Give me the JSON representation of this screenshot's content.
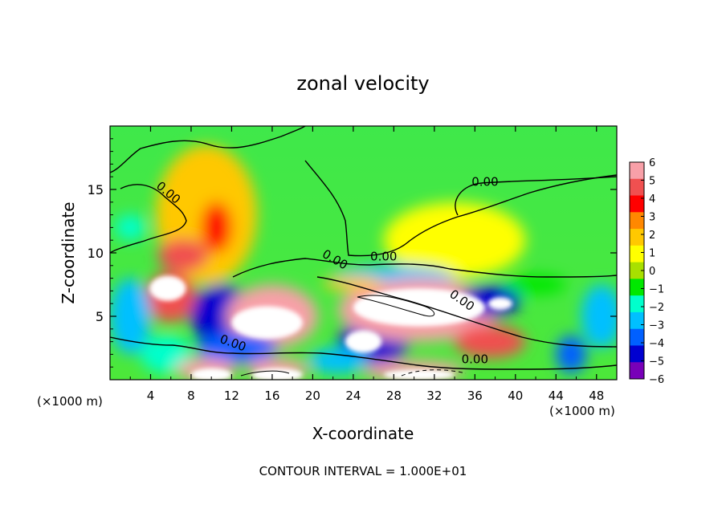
{
  "chart_data": {
    "type": "heatmap",
    "title": "zonal velocity",
    "xlabel": "X-coordinate",
    "ylabel": "Z-coordinate",
    "x_unit_label": "(×1000 m)",
    "x_ticks": [
      4,
      8,
      12,
      16,
      20,
      24,
      28,
      32,
      36,
      40,
      44,
      48
    ],
    "y_ticks": [
      5,
      10,
      15
    ],
    "xlim": [
      0,
      50
    ],
    "ylim": [
      0,
      20
    ],
    "footer": "CONTOUR INTERVAL = 1.000E+01",
    "colorbar": {
      "ticks": [
        6,
        5,
        4,
        3,
        2,
        1,
        0,
        -1,
        -2,
        -3,
        -4,
        -5,
        -6
      ],
      "tick_labels": [
        "6",
        "5",
        "4",
        "3",
        "2",
        "1",
        "0",
        "−1",
        "−2",
        "−3",
        "−4",
        "−5",
        "−6"
      ],
      "colors": [
        "#f8a0a8",
        "#f05050",
        "#ff0000",
        "#ff8800",
        "#ffc800",
        "#ffff00",
        "#a8e000",
        "#00e800",
        "#00ffcc",
        "#00c0ff",
        "#0060ff",
        "#0000d0",
        "#7800b8"
      ]
    },
    "field": {
      "background": "#3fe84a",
      "blobs": [
        {
          "x": 9.5,
          "y": 13.0,
          "rx": 5.0,
          "ry": 5.5,
          "value": 1.5
        },
        {
          "x": 10.5,
          "y": 12.0,
          "rx": 1.5,
          "ry": 2.0,
          "value": 4.0
        },
        {
          "x": 7.2,
          "y": 9.8,
          "rx": 2.5,
          "ry": 1.3,
          "value": 5.0
        },
        {
          "x": 2.0,
          "y": 12.0,
          "rx": 1.5,
          "ry": 1.0,
          "value": -2.0
        },
        {
          "x": 34.0,
          "y": 11.0,
          "rx": 7.0,
          "ry": 3.0,
          "value": 0.6
        },
        {
          "x": 6.0,
          "y": 6.5,
          "rx": 2.5,
          "ry": 2.0,
          "value": 5.0
        },
        {
          "x": 2.0,
          "y": 5.0,
          "rx": 2.0,
          "ry": 3.0,
          "value": -3.0
        },
        {
          "x": 11.0,
          "y": 5.0,
          "rx": 3.0,
          "ry": 2.5,
          "value": -5.0
        },
        {
          "x": 16.0,
          "y": 5.0,
          "rx": 4.5,
          "ry": 2.5,
          "value": 6.0
        },
        {
          "x": 12.5,
          "y": 2.5,
          "rx": 4.0,
          "ry": 1.2,
          "value": -4.0
        },
        {
          "x": 26.0,
          "y": 3.0,
          "rx": 3.5,
          "ry": 1.8,
          "value": -5.0
        },
        {
          "x": 28.0,
          "y": 8.0,
          "rx": 6.0,
          "ry": 1.0,
          "value": -3.0
        },
        {
          "x": 30.5,
          "y": 5.5,
          "rx": 8.0,
          "ry": 2.5,
          "value": 6.0
        },
        {
          "x": 37.5,
          "y": 3.0,
          "rx": 3.5,
          "ry": 1.3,
          "value": 5.0
        },
        {
          "x": 37.5,
          "y": 6.2,
          "rx": 3.0,
          "ry": 1.2,
          "value": -5.0
        },
        {
          "x": 45.5,
          "y": 2.0,
          "rx": 1.5,
          "ry": 1.5,
          "value": -4.0
        },
        {
          "x": 48.5,
          "y": 5.0,
          "rx": 2.0,
          "ry": 2.5,
          "value": -3.0
        },
        {
          "x": 22.5,
          "y": 1.5,
          "rx": 3.0,
          "ry": 1.0,
          "value": -3.0
        },
        {
          "x": 42.0,
          "y": 7.5,
          "rx": 3.0,
          "ry": 0.8,
          "value": -1.5
        },
        {
          "x": 24.0,
          "y": 7.6,
          "rx": 3.0,
          "ry": 0.6,
          "value": 2.0
        },
        {
          "x": 5.5,
          "y": 2.0,
          "rx": 2.5,
          "ry": 1.5,
          "value": -2.0
        },
        {
          "x": 9.5,
          "y": 0.8,
          "rx": 3.0,
          "ry": 0.9,
          "value": 6.0
        },
        {
          "x": 16.5,
          "y": 0.8,
          "rx": 3.0,
          "ry": 0.9,
          "value": 6.0
        },
        {
          "x": 30.0,
          "y": 0.7,
          "rx": 5.0,
          "ry": 0.8,
          "value": 6.0
        }
      ],
      "saturated_regions": [
        {
          "x": 5.7,
          "y": 7.2,
          "rx": 1.8,
          "ry": 1.0
        },
        {
          "x": 15.5,
          "y": 4.5,
          "rx": 3.5,
          "ry": 1.3
        },
        {
          "x": 25.0,
          "y": 3.0,
          "rx": 1.8,
          "ry": 0.9
        },
        {
          "x": 30.5,
          "y": 5.7,
          "rx": 6.5,
          "ry": 1.5
        },
        {
          "x": 38.5,
          "y": 6.0,
          "rx": 1.2,
          "ry": 0.5
        },
        {
          "x": 10.0,
          "y": 0.4,
          "rx": 2.0,
          "ry": 0.5
        },
        {
          "x": 16.5,
          "y": 0.4,
          "rx": 2.5,
          "ry": 0.5
        },
        {
          "x": 30.5,
          "y": 0.4,
          "rx": 3.5,
          "ry": 0.4
        }
      ]
    },
    "contour_labels": [
      {
        "text": "0.00",
        "x": 5.5,
        "y": 14.5,
        "angle": 40
      },
      {
        "text": "0.00",
        "x": 37.0,
        "y": 15.3,
        "angle": 0
      },
      {
        "text": "0.00",
        "x": 22.0,
        "y": 9.2,
        "angle": 30
      },
      {
        "text": "0.00",
        "x": 27.0,
        "y": 9.4,
        "angle": 0
      },
      {
        "text": "0.00",
        "x": 34.5,
        "y": 6.0,
        "angle": 35
      },
      {
        "text": "0.00",
        "x": 12.0,
        "y": 2.6,
        "angle": 20
      },
      {
        "text": "0.00",
        "x": 36.0,
        "y": 1.3,
        "angle": 0
      }
    ]
  }
}
